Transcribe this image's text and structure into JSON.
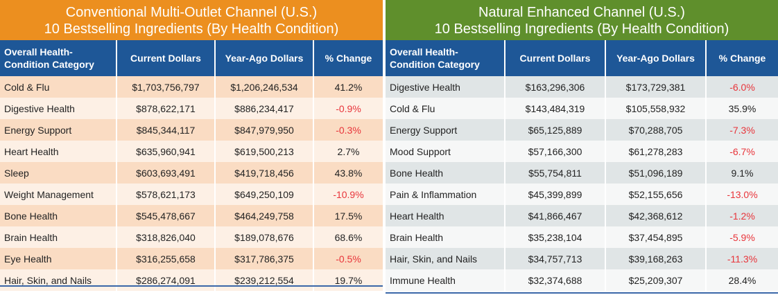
{
  "chart_data": [
    {
      "type": "table",
      "title": [
        "Conventional Multi-Outlet Channel (U.S.)",
        "10 Bestselling Ingredients (By Health Condition)"
      ],
      "header_color": "#ec8f1f",
      "columns": [
        "Overall Health-Condition Category",
        "Current Dollars",
        "Year-Ago Dollars",
        "% Change"
      ],
      "rows": [
        {
          "category": "Cold & Flu",
          "current": "$1,703,756,797",
          "year_ago": "$1,206,246,534",
          "change": "41.2%",
          "negative": false
        },
        {
          "category": "Digestive Health",
          "current": "$878,622,171",
          "year_ago": "$886,234,417",
          "change": "-0.9%",
          "negative": true
        },
        {
          "category": "Energy Support",
          "current": "$845,344,117",
          "year_ago": "$847,979,950",
          "change": "-0.3%",
          "negative": true
        },
        {
          "category": "Heart Health",
          "current": "$635,960,941",
          "year_ago": "$619,500,213",
          "change": "2.7%",
          "negative": false
        },
        {
          "category": "Sleep",
          "current": "$603,693,491",
          "year_ago": "$419,718,456",
          "change": "43.8%",
          "negative": false
        },
        {
          "category": "Weight Management",
          "current": "$578,621,173",
          "year_ago": "$649,250,109",
          "change": "-10.9%",
          "negative": true
        },
        {
          "category": "Bone Health",
          "current": "$545,478,667",
          "year_ago": "$464,249,758",
          "change": "17.5%",
          "negative": false
        },
        {
          "category": "Brain Health",
          "current": "$318,826,040",
          "year_ago": "$189,078,676",
          "change": "68.6%",
          "negative": false
        },
        {
          "category": "Eye Health",
          "current": "$316,255,658",
          "year_ago": "$317,786,375",
          "change": "-0.5%",
          "negative": true
        },
        {
          "category": "Hair, Skin, and Nails",
          "current": "$286,274,091",
          "year_ago": "$239,212,554",
          "change": "19.7%",
          "negative": false
        }
      ]
    },
    {
      "type": "table",
      "title": [
        "Natural Enhanced Channel (U.S.)",
        "10 Bestselling Ingredients (By Health Condition)"
      ],
      "header_color": "#5f8f2c",
      "columns": [
        "Overall Health-Condition Category",
        "Current Dollars",
        "Year-Ago Dollars",
        "% Change"
      ],
      "rows": [
        {
          "category": "Digestive Health",
          "current": "$163,296,306",
          "year_ago": "$173,729,381",
          "change": "-6.0%",
          "negative": true
        },
        {
          "category": "Cold & Flu",
          "current": "$143,484,319",
          "year_ago": "$105,558,932",
          "change": "35.9%",
          "negative": false
        },
        {
          "category": "Energy Support",
          "current": "$65,125,889",
          "year_ago": "$70,288,705",
          "change": "-7.3%",
          "negative": true
        },
        {
          "category": "Mood Support",
          "current": "$57,166,300",
          "year_ago": "$61,278,283",
          "change": "-6.7%",
          "negative": true
        },
        {
          "category": "Bone Health",
          "current": "$55,754,811",
          "year_ago": "$51,096,189",
          "change": "9.1%",
          "negative": false
        },
        {
          "category": "Pain & Inflammation",
          "current": "$45,399,899",
          "year_ago": "$52,155,656",
          "change": "-13.0%",
          "negative": true
        },
        {
          "category": "Heart Health",
          "current": "$41,866,467",
          "year_ago": "$42,368,612",
          "change": "-1.2%",
          "negative": true
        },
        {
          "category": "Brain Health",
          "current": "$35,238,104",
          "year_ago": "$37,454,895",
          "change": "-5.9%",
          "negative": true
        },
        {
          "category": "Hair, Skin, and Nails",
          "current": "$34,757,713",
          "year_ago": "$39,168,263",
          "change": "-11.3%",
          "negative": true
        },
        {
          "category": "Immune Health",
          "current": "$32,374,688",
          "year_ago": "$25,209,307",
          "change": "28.4%",
          "negative": false
        }
      ]
    }
  ],
  "colors": {
    "header_blue": "#1e5797",
    "negative_red": "#e8343a"
  }
}
